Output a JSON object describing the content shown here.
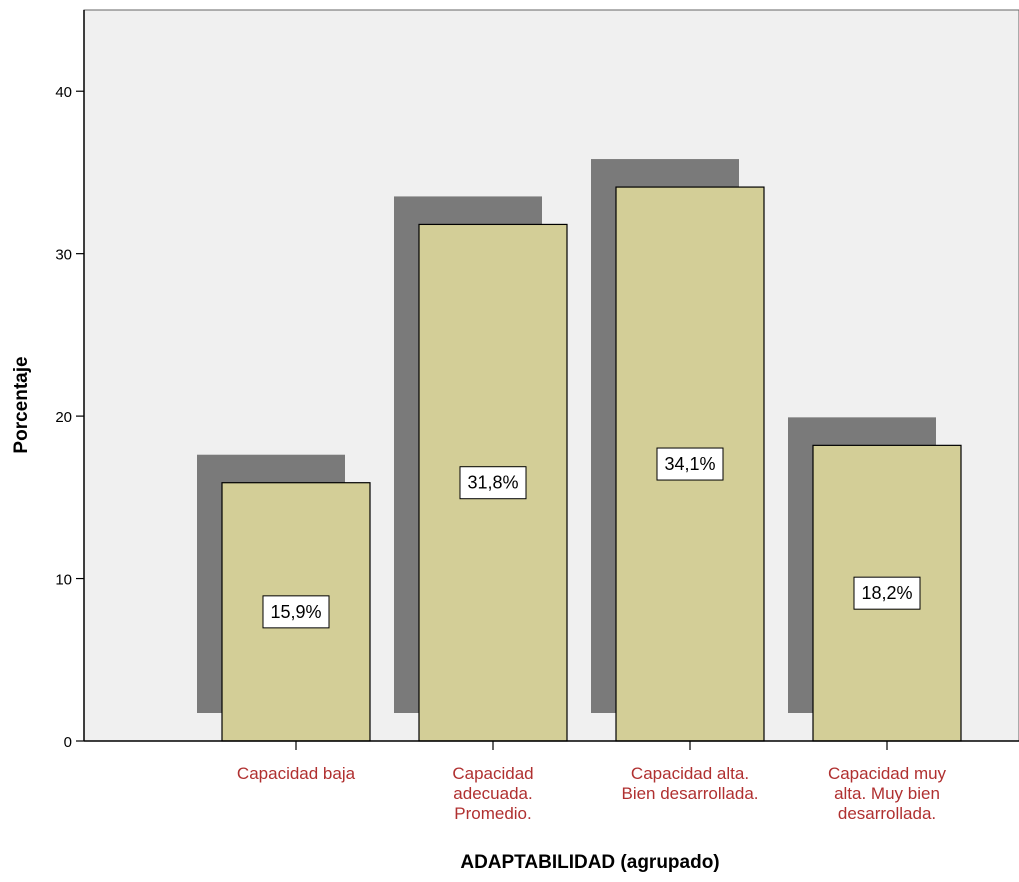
{
  "chart_data": {
    "type": "bar",
    "title": "",
    "xlabel": "ADAPTABILIDAD (agrupado)",
    "ylabel": "Porcentaje",
    "ylim": [
      0,
      45
    ],
    "yticks": [
      0,
      10,
      20,
      30,
      40
    ],
    "categories": [
      [
        "Capacidad baja"
      ],
      [
        "Capacidad",
        "adecuada.",
        "Promedio."
      ],
      [
        "Capacidad alta.",
        "Bien desarrollada."
      ],
      [
        "Capacidad muy",
        "alta. Muy bien",
        "desarrollada."
      ]
    ],
    "values": [
      15.9,
      31.8,
      34.1,
      18.2
    ],
    "data_labels": [
      "15,9%",
      "31,8%",
      "34,1%",
      "18,2%"
    ],
    "grid": false,
    "legend": "none",
    "style": "3d-shadow"
  },
  "colors": {
    "plot_background": "#f0f0f0",
    "bar_fill": "#d3ce97",
    "bar_shadow": "#7a7a7a",
    "category_label": "#b03030",
    "axis": "#000000"
  }
}
